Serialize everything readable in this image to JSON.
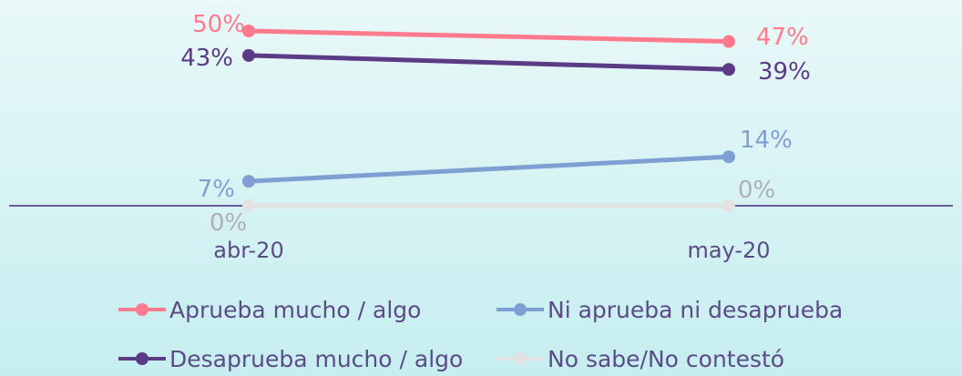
{
  "chart_data": {
    "type": "line",
    "categories": [
      "abr-20",
      "may-20"
    ],
    "ylim": [
      0,
      55
    ],
    "grid": false,
    "legend_position": "bottom",
    "series": [
      {
        "name": "Aprueba mucho / algo",
        "values": [
          50,
          47
        ],
        "labels": [
          "50%",
          "47%"
        ],
        "color": "#ff7a8c"
      },
      {
        "name": "Desaprueba mucho / algo",
        "values": [
          43,
          39
        ],
        "labels": [
          "43%",
          "39%"
        ],
        "color": "#5b3a86"
      },
      {
        "name": "Ni aprueba ni desaprueba",
        "values": [
          7,
          14
        ],
        "labels": [
          "7%",
          "14%"
        ],
        "color": "#7f9fd3"
      },
      {
        "name": "No sabe/No contestó",
        "values": [
          0,
          0
        ],
        "labels": [
          "0%",
          "0%"
        ],
        "color": "#e2e2e2"
      }
    ]
  },
  "colors": {
    "axis": "#6a5d9e",
    "label_zero": "#b0b0b0",
    "tick_text": "#5b4b86"
  }
}
